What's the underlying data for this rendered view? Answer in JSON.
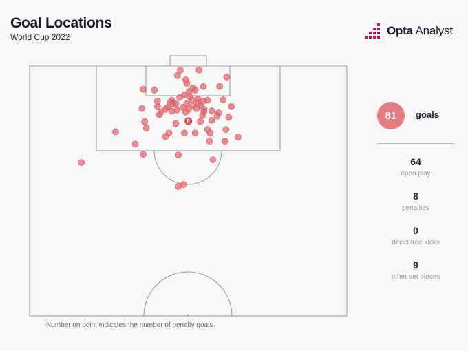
{
  "header": {
    "title": "Goal Locations",
    "subtitle": "World Cup 2022",
    "brand_bold": "Opta",
    "brand_light": " Analyst"
  },
  "summary": {
    "total_value": "81",
    "total_label": "goals",
    "breakdown": [
      {
        "value": "64",
        "label": "open play"
      },
      {
        "value": "8",
        "label": "penalties"
      },
      {
        "value": "0",
        "label": "direct free kicks"
      },
      {
        "value": "9",
        "label": "other set pieces"
      }
    ]
  },
  "footnote": "Number on point indicates the number of penalty goals",
  "colors": {
    "goal_point": "#e26a72",
    "total_circle": "#e57a80",
    "pitch_line": "#999999",
    "brand_accent": "#c2185b"
  },
  "chart_data": {
    "type": "scatter",
    "title": "Goal Locations",
    "subtitle": "World Cup 2022",
    "x_unit": "pitch width (0 = left touchline, 100 = right touchline)",
    "y_unit": "distance from goal line (0 = goal line, 100 = halfway line)",
    "xlim": [
      0,
      100
    ],
    "ylim": [
      0,
      100
    ],
    "penalty_point": {
      "x": 50,
      "y": 22,
      "label": "8"
    },
    "points": [
      {
        "x": 47.5,
        "y": 1.6
      },
      {
        "x": 53.4,
        "y": 1.6
      },
      {
        "x": 46.6,
        "y": 3.8
      },
      {
        "x": 62.1,
        "y": 4.4
      },
      {
        "x": 49.2,
        "y": 5.5
      },
      {
        "x": 49.6,
        "y": 6.9
      },
      {
        "x": 35.8,
        "y": 9.3
      },
      {
        "x": 39.3,
        "y": 9.6
      },
      {
        "x": 50.3,
        "y": 10.2
      },
      {
        "x": 52.2,
        "y": 9.6
      },
      {
        "x": 54.8,
        "y": 8.2
      },
      {
        "x": 59.9,
        "y": 8.2
      },
      {
        "x": 48.8,
        "y": 11.5
      },
      {
        "x": 47.3,
        "y": 12.6
      },
      {
        "x": 44.8,
        "y": 13.7
      },
      {
        "x": 51.1,
        "y": 13.5
      },
      {
        "x": 53.1,
        "y": 13.2
      },
      {
        "x": 56.1,
        "y": 13.7
      },
      {
        "x": 61.0,
        "y": 13.5
      },
      {
        "x": 40.3,
        "y": 14.0
      },
      {
        "x": 45.1,
        "y": 15.1
      },
      {
        "x": 46.1,
        "y": 15.1
      },
      {
        "x": 49.5,
        "y": 15.1
      },
      {
        "x": 53.2,
        "y": 14.8
      },
      {
        "x": 54.7,
        "y": 14.0
      },
      {
        "x": 40.3,
        "y": 16.2
      },
      {
        "x": 43.5,
        "y": 16.5
      },
      {
        "x": 48.3,
        "y": 16.5
      },
      {
        "x": 51.5,
        "y": 15.9
      },
      {
        "x": 53.8,
        "y": 15.9
      },
      {
        "x": 63.6,
        "y": 16.2
      },
      {
        "x": 35.4,
        "y": 17.0
      },
      {
        "x": 42.8,
        "y": 17.3
      },
      {
        "x": 46.5,
        "y": 17.6
      },
      {
        "x": 50.1,
        "y": 17.3
      },
      {
        "x": 52.6,
        "y": 17.0
      },
      {
        "x": 55.0,
        "y": 17.3
      },
      {
        "x": 57.4,
        "y": 17.9
      },
      {
        "x": 41.3,
        "y": 18.4
      },
      {
        "x": 44.9,
        "y": 18.1
      },
      {
        "x": 49.2,
        "y": 18.4
      },
      {
        "x": 54.9,
        "y": 18.4
      },
      {
        "x": 59.6,
        "y": 18.7
      },
      {
        "x": 40.9,
        "y": 19.5
      },
      {
        "x": 54.5,
        "y": 19.8
      },
      {
        "x": 59.1,
        "y": 20.0
      },
      {
        "x": 36.3,
        "y": 22.2
      },
      {
        "x": 46.1,
        "y": 23.0
      },
      {
        "x": 53.8,
        "y": 22.2
      },
      {
        "x": 57.4,
        "y": 21.7
      },
      {
        "x": 36.8,
        "y": 24.9
      },
      {
        "x": 56.1,
        "y": 25.4
      },
      {
        "x": 61.9,
        "y": 25.4
      },
      {
        "x": 27.1,
        "y": 26.3
      },
      {
        "x": 43.9,
        "y": 26.8
      },
      {
        "x": 48.8,
        "y": 26.8
      },
      {
        "x": 52.2,
        "y": 26.8
      },
      {
        "x": 56.9,
        "y": 26.8
      },
      {
        "x": 42.8,
        "y": 28.2
      },
      {
        "x": 65.7,
        "y": 28.4
      },
      {
        "x": 56.7,
        "y": 30.1
      },
      {
        "x": 61.6,
        "y": 30.1
      },
      {
        "x": 33.3,
        "y": 31.2
      },
      {
        "x": 35.8,
        "y": 35.3
      },
      {
        "x": 46.9,
        "y": 35.6
      },
      {
        "x": 57.8,
        "y": 37.5
      },
      {
        "x": 16.3,
        "y": 38.6
      },
      {
        "x": 48.5,
        "y": 47.4
      },
      {
        "x": 46.9,
        "y": 48.2
      },
      {
        "x": 44.4,
        "y": 14.5
      },
      {
        "x": 51.5,
        "y": 8.8
      },
      {
        "x": 50.4,
        "y": 12.2
      },
      {
        "x": 62.8,
        "y": 20.5
      }
    ]
  }
}
